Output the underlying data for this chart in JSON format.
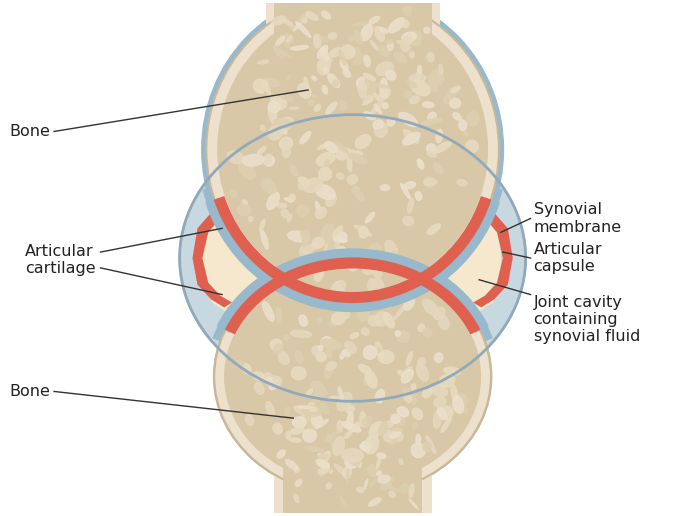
{
  "title": "",
  "background_color": "#ffffff",
  "labels": {
    "bone_top": "Bone",
    "bone_bottom": "Bone",
    "articular_cartilage": "Articular\ncartilage",
    "synovial_membrane": "Synovial\nmembrane",
    "articular_capsule": "Articular\ncapsule",
    "joint_cavity": "Joint cavity\ncontaining\nsynovial fluid"
  },
  "colors": {
    "bone_outer": "#ede0cc",
    "bone_inner": "#d8c8a8",
    "bone_spongy_light": "#e8dcc0",
    "bone_spongy_dark": "#c8b890",
    "cartilage_fill": "#f0e6c8",
    "synovial_red": "#e06050",
    "capsule_blue": "#98b8cc",
    "capsule_outer": "#c8d8e0",
    "joint_fluid": "#f5e8cc",
    "label_color": "#222222",
    "line_color": "#333333"
  },
  "figsize": [
    7.0,
    5.16
  ],
  "dpi": 100
}
